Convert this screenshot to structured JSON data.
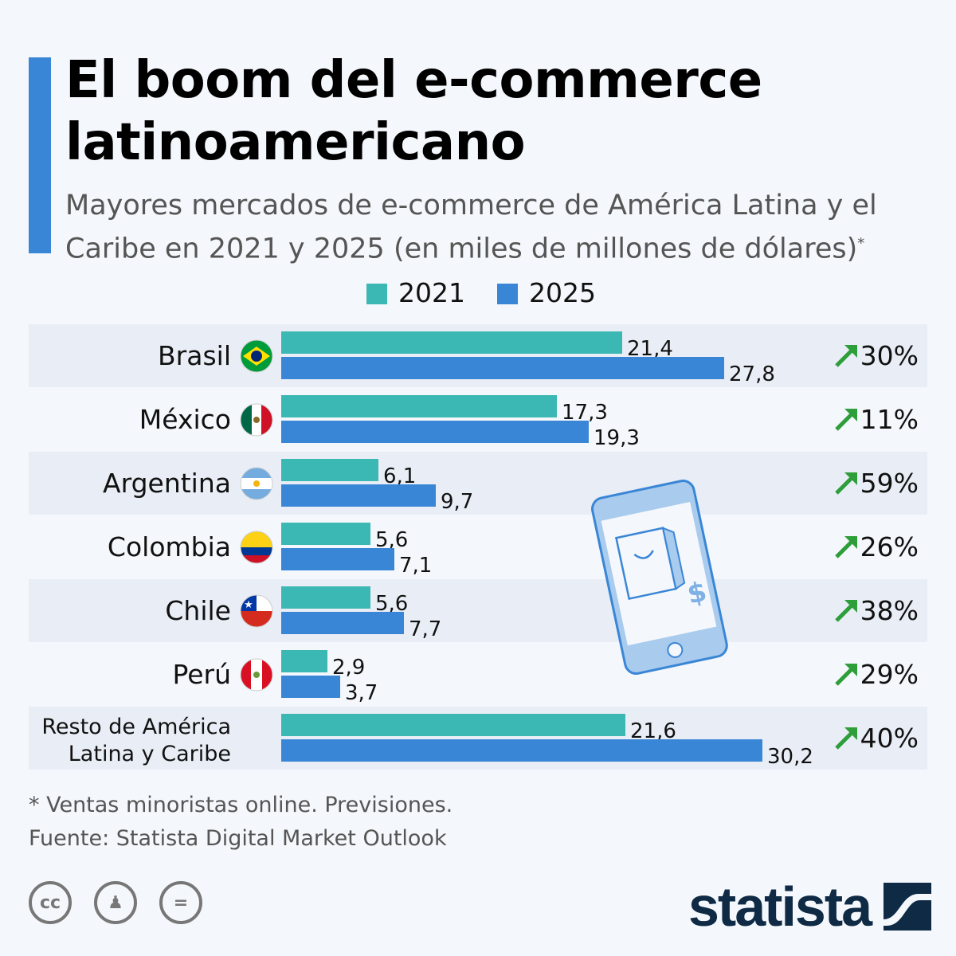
{
  "title": "El boom del e-commerce latinoamericano",
  "subtitle": "Mayores mercados de e-commerce de América Latina y el Caribe en 2021 y 2025 (en miles de millones de dólares)",
  "subtitle_mark": "*",
  "colors": {
    "s2021": "#3bb8b3",
    "s2025": "#3a86d6",
    "arrow": "#2e9e3a",
    "accent": "#3a86d6"
  },
  "chart_data": {
    "type": "bar",
    "orientation": "horizontal",
    "categories": [
      "Brasil",
      "México",
      "Argentina",
      "Colombia",
      "Chile",
      "Perú",
      "Resto de América Latina y Caribe"
    ],
    "series": [
      {
        "name": "2021",
        "values": [
          21.4,
          17.3,
          6.1,
          5.6,
          5.6,
          2.9,
          21.6
        ]
      },
      {
        "name": "2025",
        "values": [
          27.8,
          19.3,
          9.7,
          7.1,
          7.7,
          3.7,
          30.2
        ]
      }
    ],
    "value_labels": {
      "2021": [
        "21,4",
        "17,3",
        "6,1",
        "5,6",
        "5,6",
        "2,9",
        "21,6"
      ],
      "2025": [
        "27,8",
        "19,3",
        "9,7",
        "7,1",
        "7,7",
        "3,7",
        "30,2"
      ]
    },
    "growth_labels": [
      "30%",
      "11%",
      "59%",
      "26%",
      "38%",
      "29%",
      "40%"
    ],
    "growth_icon": "arrow-up-right-icon",
    "flags": [
      "brazil",
      "mexico",
      "argentina",
      "colombia",
      "chile",
      "peru",
      ""
    ],
    "legend_position": "top",
    "grid": false
  },
  "footnote": "* Ventas minoristas online. Previsiones.",
  "source": "Fuente: Statista Digital Market Outlook",
  "license_icons": [
    "cc-icon",
    "attribution-icon",
    "no-derivatives-icon"
  ],
  "brand": "statista"
}
